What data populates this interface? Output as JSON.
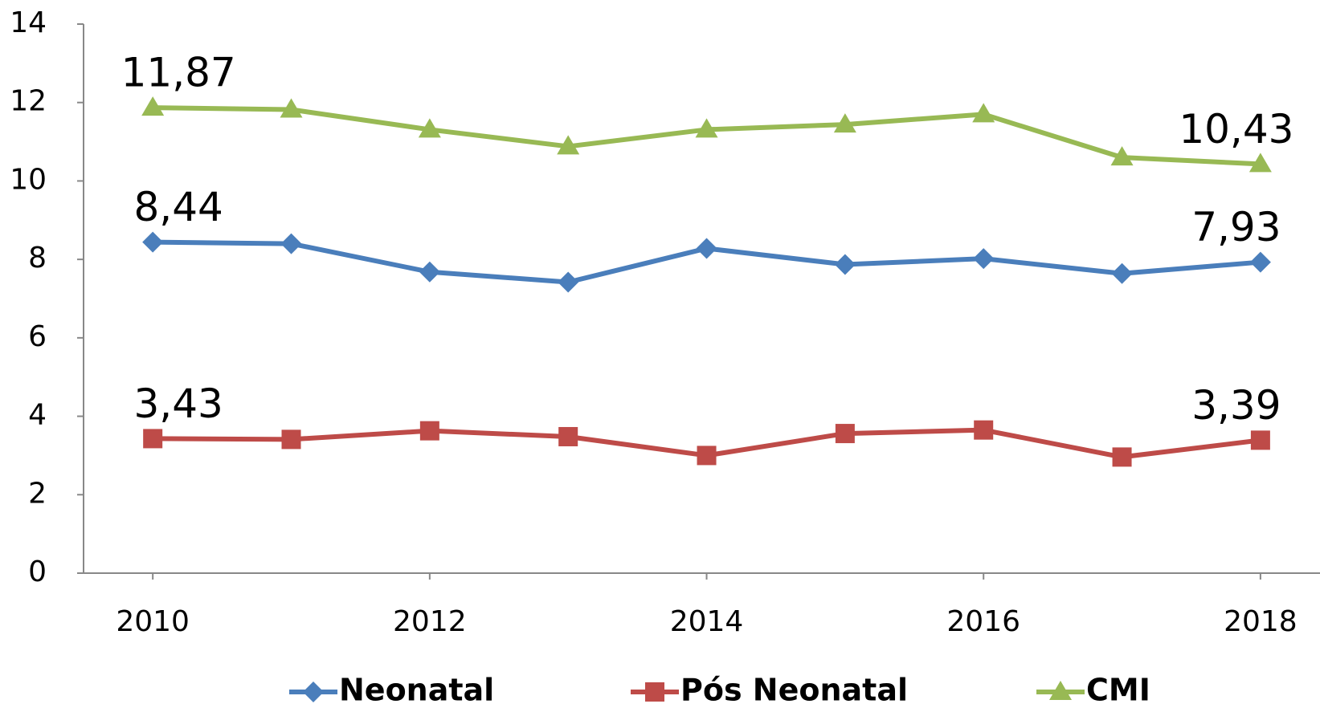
{
  "chart_data": {
    "type": "line",
    "x": [
      2010,
      2011,
      2012,
      2013,
      2014,
      2015,
      2016,
      2017,
      2018
    ],
    "series": [
      {
        "name": "Neonatal",
        "color": "#4a7ebb",
        "marker": "diamond",
        "values": [
          8.44,
          8.4,
          7.68,
          7.42,
          8.28,
          7.87,
          8.02,
          7.64,
          7.93
        ],
        "value_labels": [
          "8,44",
          null,
          null,
          null,
          null,
          null,
          null,
          null,
          "7,93"
        ]
      },
      {
        "name": "Pós Neonatal",
        "color": "#be4b48",
        "marker": "square",
        "values": [
          3.43,
          3.41,
          3.63,
          3.48,
          3.0,
          3.56,
          3.65,
          2.96,
          3.39
        ],
        "value_labels": [
          "3,43",
          null,
          null,
          null,
          null,
          null,
          null,
          null,
          "3,39"
        ]
      },
      {
        "name": "CMI",
        "color": "#98b954",
        "marker": "triangle",
        "values": [
          11.87,
          11.82,
          11.31,
          10.88,
          11.31,
          11.44,
          11.7,
          10.6,
          10.43
        ],
        "value_labels": [
          "11,87",
          null,
          null,
          null,
          null,
          null,
          null,
          null,
          "10,43"
        ]
      }
    ],
    "xlim": [
      2009.5,
      2018.43
    ],
    "xticks": [
      2010,
      2012,
      2014,
      2016,
      2018
    ],
    "ylim": [
      0,
      14
    ],
    "yticks": [
      0,
      2,
      4,
      6,
      8,
      10,
      12,
      14
    ],
    "grid": false,
    "legend": "bottom"
  }
}
